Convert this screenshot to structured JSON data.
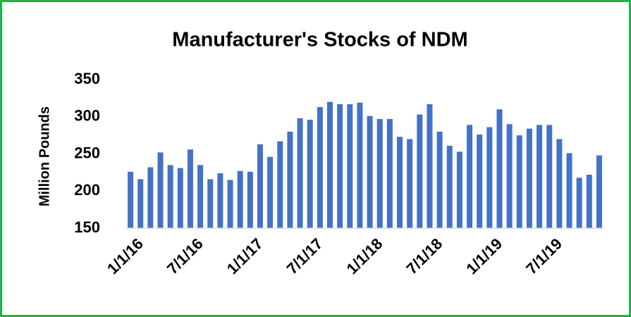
{
  "chart_data": {
    "type": "bar",
    "title": "Manufacturer's Stocks of NDM",
    "y_label": "Million Pounds",
    "categories": [
      "1/1/16",
      null,
      null,
      null,
      null,
      null,
      "7/1/16",
      null,
      null,
      null,
      null,
      null,
      "1/1/17",
      null,
      null,
      null,
      null,
      null,
      "7/1/17",
      null,
      null,
      null,
      null,
      null,
      "1/1/18",
      null,
      null,
      null,
      null,
      null,
      "7/1/18",
      null,
      null,
      null,
      null,
      null,
      "1/1/19",
      null,
      null,
      null,
      null,
      null,
      "7/1/19",
      null,
      null,
      null,
      null,
      null
    ],
    "values": [
      226,
      216,
      232,
      252,
      235,
      231,
      256,
      235,
      216,
      224,
      215,
      227,
      226,
      263,
      246,
      267,
      280,
      298,
      296,
      313,
      320,
      317,
      317,
      319,
      301,
      297,
      297,
      273,
      270,
      303,
      317,
      280,
      261,
      253,
      289,
      276,
      286,
      310,
      290,
      275,
      284,
      289,
      289,
      270,
      251,
      218,
      222,
      248
    ],
    "color": "#4472c4",
    "ylim": [
      150,
      350
    ],
    "yticks": [
      150,
      200,
      250,
      300,
      350
    ],
    "grid": false
  }
}
